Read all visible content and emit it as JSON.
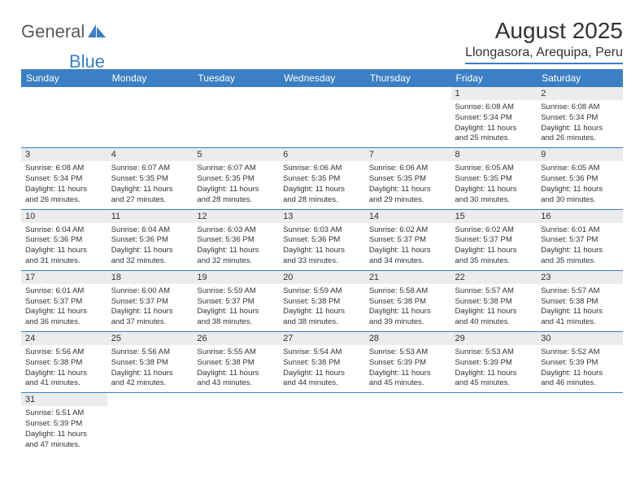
{
  "brand": {
    "part1": "General",
    "part2": "Blue"
  },
  "title": "August 2025",
  "location": "Llongasora, Arequipa, Peru",
  "colors": {
    "accent": "#3b7fc4",
    "daynum_bg": "#ececec",
    "text": "#333"
  },
  "weekdays": [
    "Sunday",
    "Monday",
    "Tuesday",
    "Wednesday",
    "Thursday",
    "Friday",
    "Saturday"
  ],
  "weeks": [
    [
      {
        "n": "",
        "l": []
      },
      {
        "n": "",
        "l": []
      },
      {
        "n": "",
        "l": []
      },
      {
        "n": "",
        "l": []
      },
      {
        "n": "",
        "l": []
      },
      {
        "n": "1",
        "l": [
          "Sunrise: 6:08 AM",
          "Sunset: 5:34 PM",
          "Daylight: 11 hours",
          "and 25 minutes."
        ]
      },
      {
        "n": "2",
        "l": [
          "Sunrise: 6:08 AM",
          "Sunset: 5:34 PM",
          "Daylight: 11 hours",
          "and 26 minutes."
        ]
      }
    ],
    [
      {
        "n": "3",
        "l": [
          "Sunrise: 6:08 AM",
          "Sunset: 5:34 PM",
          "Daylight: 11 hours",
          "and 26 minutes."
        ]
      },
      {
        "n": "4",
        "l": [
          "Sunrise: 6:07 AM",
          "Sunset: 5:35 PM",
          "Daylight: 11 hours",
          "and 27 minutes."
        ]
      },
      {
        "n": "5",
        "l": [
          "Sunrise: 6:07 AM",
          "Sunset: 5:35 PM",
          "Daylight: 11 hours",
          "and 28 minutes."
        ]
      },
      {
        "n": "6",
        "l": [
          "Sunrise: 6:06 AM",
          "Sunset: 5:35 PM",
          "Daylight: 11 hours",
          "and 28 minutes."
        ]
      },
      {
        "n": "7",
        "l": [
          "Sunrise: 6:06 AM",
          "Sunset: 5:35 PM",
          "Daylight: 11 hours",
          "and 29 minutes."
        ]
      },
      {
        "n": "8",
        "l": [
          "Sunrise: 6:05 AM",
          "Sunset: 5:35 PM",
          "Daylight: 11 hours",
          "and 30 minutes."
        ]
      },
      {
        "n": "9",
        "l": [
          "Sunrise: 6:05 AM",
          "Sunset: 5:36 PM",
          "Daylight: 11 hours",
          "and 30 minutes."
        ]
      }
    ],
    [
      {
        "n": "10",
        "l": [
          "Sunrise: 6:04 AM",
          "Sunset: 5:36 PM",
          "Daylight: 11 hours",
          "and 31 minutes."
        ]
      },
      {
        "n": "11",
        "l": [
          "Sunrise: 6:04 AM",
          "Sunset: 5:36 PM",
          "Daylight: 11 hours",
          "and 32 minutes."
        ]
      },
      {
        "n": "12",
        "l": [
          "Sunrise: 6:03 AM",
          "Sunset: 5:36 PM",
          "Daylight: 11 hours",
          "and 32 minutes."
        ]
      },
      {
        "n": "13",
        "l": [
          "Sunrise: 6:03 AM",
          "Sunset: 5:36 PM",
          "Daylight: 11 hours",
          "and 33 minutes."
        ]
      },
      {
        "n": "14",
        "l": [
          "Sunrise: 6:02 AM",
          "Sunset: 5:37 PM",
          "Daylight: 11 hours",
          "and 34 minutes."
        ]
      },
      {
        "n": "15",
        "l": [
          "Sunrise: 6:02 AM",
          "Sunset: 5:37 PM",
          "Daylight: 11 hours",
          "and 35 minutes."
        ]
      },
      {
        "n": "16",
        "l": [
          "Sunrise: 6:01 AM",
          "Sunset: 5:37 PM",
          "Daylight: 11 hours",
          "and 35 minutes."
        ]
      }
    ],
    [
      {
        "n": "17",
        "l": [
          "Sunrise: 6:01 AM",
          "Sunset: 5:37 PM",
          "Daylight: 11 hours",
          "and 36 minutes."
        ]
      },
      {
        "n": "18",
        "l": [
          "Sunrise: 6:00 AM",
          "Sunset: 5:37 PM",
          "Daylight: 11 hours",
          "and 37 minutes."
        ]
      },
      {
        "n": "19",
        "l": [
          "Sunrise: 5:59 AM",
          "Sunset: 5:37 PM",
          "Daylight: 11 hours",
          "and 38 minutes."
        ]
      },
      {
        "n": "20",
        "l": [
          "Sunrise: 5:59 AM",
          "Sunset: 5:38 PM",
          "Daylight: 11 hours",
          "and 38 minutes."
        ]
      },
      {
        "n": "21",
        "l": [
          "Sunrise: 5:58 AM",
          "Sunset: 5:38 PM",
          "Daylight: 11 hours",
          "and 39 minutes."
        ]
      },
      {
        "n": "22",
        "l": [
          "Sunrise: 5:57 AM",
          "Sunset: 5:38 PM",
          "Daylight: 11 hours",
          "and 40 minutes."
        ]
      },
      {
        "n": "23",
        "l": [
          "Sunrise: 5:57 AM",
          "Sunset: 5:38 PM",
          "Daylight: 11 hours",
          "and 41 minutes."
        ]
      }
    ],
    [
      {
        "n": "24",
        "l": [
          "Sunrise: 5:56 AM",
          "Sunset: 5:38 PM",
          "Daylight: 11 hours",
          "and 41 minutes."
        ]
      },
      {
        "n": "25",
        "l": [
          "Sunrise: 5:56 AM",
          "Sunset: 5:38 PM",
          "Daylight: 11 hours",
          "and 42 minutes."
        ]
      },
      {
        "n": "26",
        "l": [
          "Sunrise: 5:55 AM",
          "Sunset: 5:38 PM",
          "Daylight: 11 hours",
          "and 43 minutes."
        ]
      },
      {
        "n": "27",
        "l": [
          "Sunrise: 5:54 AM",
          "Sunset: 5:38 PM",
          "Daylight: 11 hours",
          "and 44 minutes."
        ]
      },
      {
        "n": "28",
        "l": [
          "Sunrise: 5:53 AM",
          "Sunset: 5:39 PM",
          "Daylight: 11 hours",
          "and 45 minutes."
        ]
      },
      {
        "n": "29",
        "l": [
          "Sunrise: 5:53 AM",
          "Sunset: 5:39 PM",
          "Daylight: 11 hours",
          "and 45 minutes."
        ]
      },
      {
        "n": "30",
        "l": [
          "Sunrise: 5:52 AM",
          "Sunset: 5:39 PM",
          "Daylight: 11 hours",
          "and 46 minutes."
        ]
      }
    ],
    [
      {
        "n": "31",
        "l": [
          "Sunrise: 5:51 AM",
          "Sunset: 5:39 PM",
          "Daylight: 11 hours",
          "and 47 minutes."
        ]
      },
      {
        "n": "",
        "l": []
      },
      {
        "n": "",
        "l": []
      },
      {
        "n": "",
        "l": []
      },
      {
        "n": "",
        "l": []
      },
      {
        "n": "",
        "l": []
      },
      {
        "n": "",
        "l": []
      }
    ]
  ]
}
